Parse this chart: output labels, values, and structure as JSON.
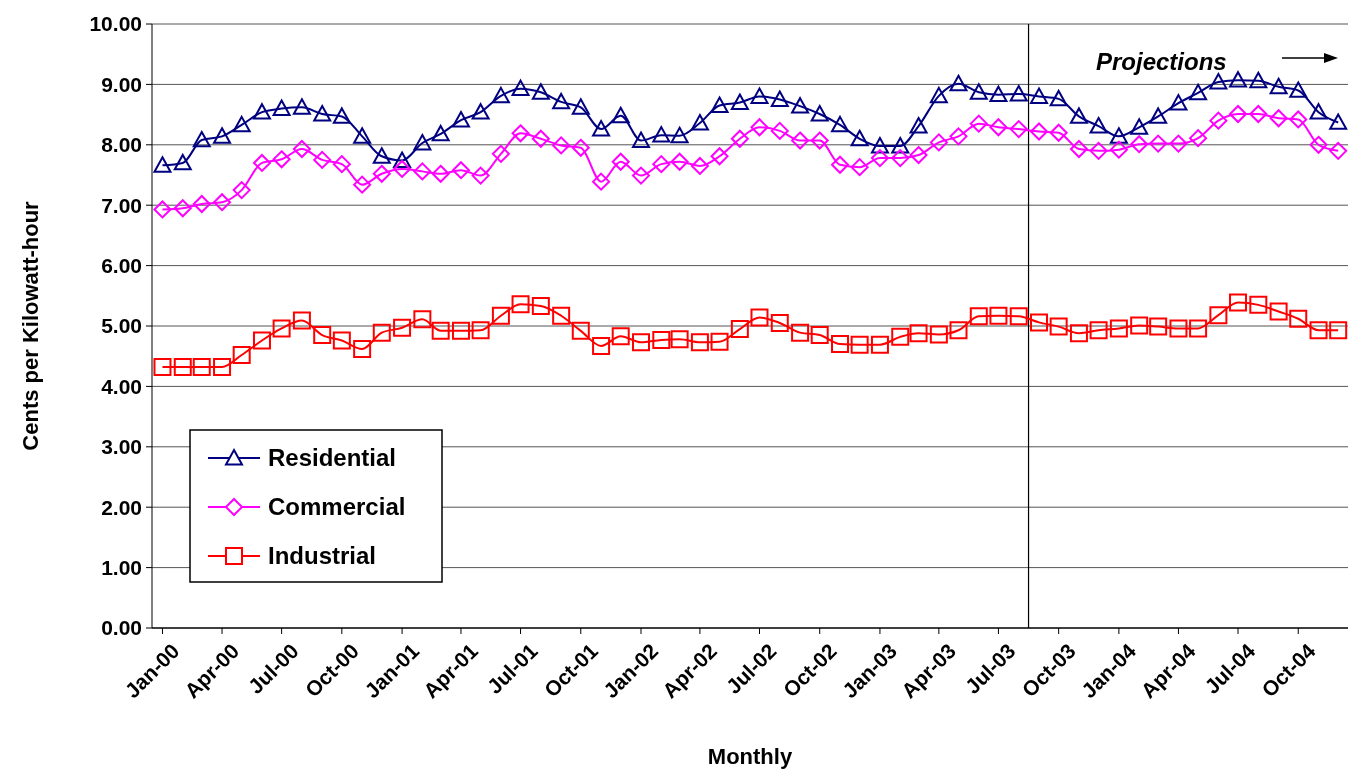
{
  "chart_data": {
    "type": "line",
    "xlabel": "Monthly",
    "ylabel": "Cents per Kilowatt-hour",
    "annotations": [
      "Projections"
    ],
    "x": [
      "2000-01",
      "2000-02",
      "2000-03",
      "2000-04",
      "2000-05",
      "2000-06",
      "2000-07",
      "2000-08",
      "2000-09",
      "2000-10",
      "2000-11",
      "2000-12",
      "2001-01",
      "2001-02",
      "2001-03",
      "2001-04",
      "2001-05",
      "2001-06",
      "2001-07",
      "2001-08",
      "2001-09",
      "2001-10",
      "2001-11",
      "2001-12",
      "2002-01",
      "2002-02",
      "2002-03",
      "2002-04",
      "2002-05",
      "2002-06",
      "2002-07",
      "2002-08",
      "2002-09",
      "2002-10",
      "2002-11",
      "2002-12",
      "2003-01",
      "2003-02",
      "2003-03",
      "2003-04",
      "2003-05",
      "2003-06",
      "2003-07",
      "2003-08",
      "2003-09",
      "2003-10",
      "2003-11",
      "2003-12",
      "2004-01",
      "2004-02",
      "2004-03",
      "2004-04",
      "2004-05",
      "2004-06",
      "2004-07",
      "2004-08",
      "2004-09",
      "2004-10",
      "2004-11",
      "2004-12"
    ],
    "xlim": [
      "1999-12-16",
      "2004-12-16"
    ],
    "xticks": [
      {
        "value": "2000-01",
        "label": "Jan-00"
      },
      {
        "value": "2000-04",
        "label": "Apr-00"
      },
      {
        "value": "2000-07",
        "label": "Jul-00"
      },
      {
        "value": "2000-10",
        "label": "Oct-00"
      },
      {
        "value": "2001-01",
        "label": "Jan-01"
      },
      {
        "value": "2001-04",
        "label": "Apr-01"
      },
      {
        "value": "2001-07",
        "label": "Jul-01"
      },
      {
        "value": "2001-10",
        "label": "Oct-01"
      },
      {
        "value": "2002-01",
        "label": "Jan-02"
      },
      {
        "value": "2002-04",
        "label": "Apr-02"
      },
      {
        "value": "2002-07",
        "label": "Jul-02"
      },
      {
        "value": "2002-10",
        "label": "Oct-02"
      },
      {
        "value": "2003-01",
        "label": "Jan-03"
      },
      {
        "value": "2003-04",
        "label": "Apr-03"
      },
      {
        "value": "2003-07",
        "label": "Jul-03"
      },
      {
        "value": "2003-10",
        "label": "Oct-03"
      },
      {
        "value": "2004-01",
        "label": "Jan-04"
      },
      {
        "value": "2004-04",
        "label": "Apr-04"
      },
      {
        "value": "2004-07",
        "label": "Jul-04"
      },
      {
        "value": "2004-10",
        "label": "Oct-04"
      }
    ],
    "ylim": [
      0,
      10
    ],
    "yticks": [
      {
        "value": 0,
        "label": "0.00"
      },
      {
        "value": 1,
        "label": "1.00"
      },
      {
        "value": 2,
        "label": "2.00"
      },
      {
        "value": 3,
        "label": "3.00"
      },
      {
        "value": 4,
        "label": "4.00"
      },
      {
        "value": 5,
        "label": "5.00"
      },
      {
        "value": 6,
        "label": "6.00"
      },
      {
        "value": 7,
        "label": "7.00"
      },
      {
        "value": 8,
        "label": "8.00"
      },
      {
        "value": 9,
        "label": "9.00"
      },
      {
        "value": 10,
        "label": "10.00"
      }
    ],
    "grid": "y",
    "legend": "bottom left",
    "ref_lines": [
      {
        "axis": "x",
        "value": "2003-08-16",
        "color": "#000000"
      }
    ],
    "series": [
      {
        "name": "Residential",
        "color": "#000080",
        "marker": "triangle",
        "values": [
          7.66,
          7.7,
          8.08,
          8.14,
          8.33,
          8.54,
          8.6,
          8.62,
          8.51,
          8.47,
          8.14,
          7.81,
          7.74,
          8.03,
          8.18,
          8.41,
          8.54,
          8.81,
          8.93,
          8.87,
          8.71,
          8.62,
          8.26,
          8.48,
          8.07,
          8.16,
          8.15,
          8.36,
          8.65,
          8.7,
          8.8,
          8.75,
          8.64,
          8.51,
          8.33,
          8.1,
          7.98,
          7.98,
          8.31,
          8.81,
          9.01,
          8.87,
          8.83,
          8.84,
          8.8,
          8.76,
          8.47,
          8.31,
          8.14,
          8.29,
          8.47,
          8.69,
          8.86,
          9.04,
          9.07,
          9.06,
          8.96,
          8.9,
          8.54,
          8.37
        ]
      },
      {
        "name": "Commercial",
        "color": "#ff00ff",
        "marker": "diamond",
        "values": [
          6.93,
          6.95,
          7.02,
          7.05,
          7.25,
          7.7,
          7.76,
          7.93,
          7.75,
          7.68,
          7.34,
          7.52,
          7.6,
          7.56,
          7.52,
          7.58,
          7.49,
          7.85,
          8.19,
          8.1,
          7.99,
          7.95,
          7.39,
          7.72,
          7.49,
          7.68,
          7.72,
          7.65,
          7.81,
          8.1,
          8.29,
          8.23,
          8.07,
          8.07,
          7.67,
          7.63,
          7.78,
          7.78,
          7.83,
          8.04,
          8.14,
          8.35,
          8.29,
          8.26,
          8.22,
          8.2,
          7.93,
          7.9,
          7.92,
          8.01,
          8.02,
          8.02,
          8.11,
          8.4,
          8.51,
          8.51,
          8.44,
          8.42,
          8.0,
          7.9
        ]
      },
      {
        "name": "Industrial",
        "color": "#ff0000",
        "marker": "square",
        "values": [
          4.32,
          4.32,
          4.32,
          4.32,
          4.52,
          4.76,
          4.96,
          5.09,
          4.85,
          4.76,
          4.62,
          4.89,
          4.97,
          5.11,
          4.92,
          4.92,
          4.93,
          5.17,
          5.36,
          5.33,
          5.17,
          4.92,
          4.67,
          4.83,
          4.73,
          4.77,
          4.78,
          4.73,
          4.74,
          4.95,
          5.14,
          5.05,
          4.89,
          4.85,
          4.7,
          4.69,
          4.69,
          4.82,
          4.88,
          4.86,
          4.93,
          5.16,
          5.17,
          5.16,
          5.06,
          4.99,
          4.88,
          4.93,
          4.96,
          5.01,
          4.99,
          4.96,
          4.96,
          5.18,
          5.39,
          5.35,
          5.24,
          5.12,
          4.93,
          4.93
        ]
      }
    ]
  }
}
